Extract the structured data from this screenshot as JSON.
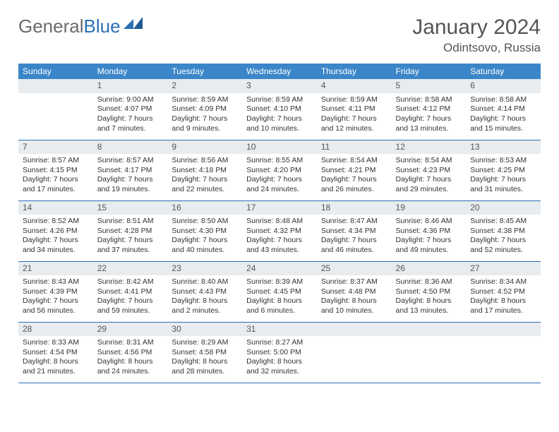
{
  "logo": {
    "text_gray": "General",
    "text_blue": "Blue"
  },
  "header": {
    "month_title": "January 2024",
    "location": "Odintsovo, Russia"
  },
  "colors": {
    "header_bg": "#3b86c8",
    "header_text": "#ffffff",
    "daynum_bg": "#e8ecef",
    "border": "#2c6fb5",
    "logo_gray": "#6b6b6b",
    "logo_blue": "#2c6fb5"
  },
  "columns": [
    "Sunday",
    "Monday",
    "Tuesday",
    "Wednesday",
    "Thursday",
    "Friday",
    "Saturday"
  ],
  "weeks": [
    [
      {
        "blank": true
      },
      {
        "n": "1",
        "sr": "Sunrise: 9:00 AM",
        "ss": "Sunset: 4:07 PM",
        "d1": "Daylight: 7 hours",
        "d2": "and 7 minutes."
      },
      {
        "n": "2",
        "sr": "Sunrise: 8:59 AM",
        "ss": "Sunset: 4:09 PM",
        "d1": "Daylight: 7 hours",
        "d2": "and 9 minutes."
      },
      {
        "n": "3",
        "sr": "Sunrise: 8:59 AM",
        "ss": "Sunset: 4:10 PM",
        "d1": "Daylight: 7 hours",
        "d2": "and 10 minutes."
      },
      {
        "n": "4",
        "sr": "Sunrise: 8:59 AM",
        "ss": "Sunset: 4:11 PM",
        "d1": "Daylight: 7 hours",
        "d2": "and 12 minutes."
      },
      {
        "n": "5",
        "sr": "Sunrise: 8:58 AM",
        "ss": "Sunset: 4:12 PM",
        "d1": "Daylight: 7 hours",
        "d2": "and 13 minutes."
      },
      {
        "n": "6",
        "sr": "Sunrise: 8:58 AM",
        "ss": "Sunset: 4:14 PM",
        "d1": "Daylight: 7 hours",
        "d2": "and 15 minutes."
      }
    ],
    [
      {
        "n": "7",
        "sr": "Sunrise: 8:57 AM",
        "ss": "Sunset: 4:15 PM",
        "d1": "Daylight: 7 hours",
        "d2": "and 17 minutes."
      },
      {
        "n": "8",
        "sr": "Sunrise: 8:57 AM",
        "ss": "Sunset: 4:17 PM",
        "d1": "Daylight: 7 hours",
        "d2": "and 19 minutes."
      },
      {
        "n": "9",
        "sr": "Sunrise: 8:56 AM",
        "ss": "Sunset: 4:18 PM",
        "d1": "Daylight: 7 hours",
        "d2": "and 22 minutes."
      },
      {
        "n": "10",
        "sr": "Sunrise: 8:55 AM",
        "ss": "Sunset: 4:20 PM",
        "d1": "Daylight: 7 hours",
        "d2": "and 24 minutes."
      },
      {
        "n": "11",
        "sr": "Sunrise: 8:54 AM",
        "ss": "Sunset: 4:21 PM",
        "d1": "Daylight: 7 hours",
        "d2": "and 26 minutes."
      },
      {
        "n": "12",
        "sr": "Sunrise: 8:54 AM",
        "ss": "Sunset: 4:23 PM",
        "d1": "Daylight: 7 hours",
        "d2": "and 29 minutes."
      },
      {
        "n": "13",
        "sr": "Sunrise: 8:53 AM",
        "ss": "Sunset: 4:25 PM",
        "d1": "Daylight: 7 hours",
        "d2": "and 31 minutes."
      }
    ],
    [
      {
        "n": "14",
        "sr": "Sunrise: 8:52 AM",
        "ss": "Sunset: 4:26 PM",
        "d1": "Daylight: 7 hours",
        "d2": "and 34 minutes."
      },
      {
        "n": "15",
        "sr": "Sunrise: 8:51 AM",
        "ss": "Sunset: 4:28 PM",
        "d1": "Daylight: 7 hours",
        "d2": "and 37 minutes."
      },
      {
        "n": "16",
        "sr": "Sunrise: 8:50 AM",
        "ss": "Sunset: 4:30 PM",
        "d1": "Daylight: 7 hours",
        "d2": "and 40 minutes."
      },
      {
        "n": "17",
        "sr": "Sunrise: 8:48 AM",
        "ss": "Sunset: 4:32 PM",
        "d1": "Daylight: 7 hours",
        "d2": "and 43 minutes."
      },
      {
        "n": "18",
        "sr": "Sunrise: 8:47 AM",
        "ss": "Sunset: 4:34 PM",
        "d1": "Daylight: 7 hours",
        "d2": "and 46 minutes."
      },
      {
        "n": "19",
        "sr": "Sunrise: 8:46 AM",
        "ss": "Sunset: 4:36 PM",
        "d1": "Daylight: 7 hours",
        "d2": "and 49 minutes."
      },
      {
        "n": "20",
        "sr": "Sunrise: 8:45 AM",
        "ss": "Sunset: 4:38 PM",
        "d1": "Daylight: 7 hours",
        "d2": "and 52 minutes."
      }
    ],
    [
      {
        "n": "21",
        "sr": "Sunrise: 8:43 AM",
        "ss": "Sunset: 4:39 PM",
        "d1": "Daylight: 7 hours",
        "d2": "and 56 minutes."
      },
      {
        "n": "22",
        "sr": "Sunrise: 8:42 AM",
        "ss": "Sunset: 4:41 PM",
        "d1": "Daylight: 7 hours",
        "d2": "and 59 minutes."
      },
      {
        "n": "23",
        "sr": "Sunrise: 8:40 AM",
        "ss": "Sunset: 4:43 PM",
        "d1": "Daylight: 8 hours",
        "d2": "and 2 minutes."
      },
      {
        "n": "24",
        "sr": "Sunrise: 8:39 AM",
        "ss": "Sunset: 4:45 PM",
        "d1": "Daylight: 8 hours",
        "d2": "and 6 minutes."
      },
      {
        "n": "25",
        "sr": "Sunrise: 8:37 AM",
        "ss": "Sunset: 4:48 PM",
        "d1": "Daylight: 8 hours",
        "d2": "and 10 minutes."
      },
      {
        "n": "26",
        "sr": "Sunrise: 8:36 AM",
        "ss": "Sunset: 4:50 PM",
        "d1": "Daylight: 8 hours",
        "d2": "and 13 minutes."
      },
      {
        "n": "27",
        "sr": "Sunrise: 8:34 AM",
        "ss": "Sunset: 4:52 PM",
        "d1": "Daylight: 8 hours",
        "d2": "and 17 minutes."
      }
    ],
    [
      {
        "n": "28",
        "sr": "Sunrise: 8:33 AM",
        "ss": "Sunset: 4:54 PM",
        "d1": "Daylight: 8 hours",
        "d2": "and 21 minutes."
      },
      {
        "n": "29",
        "sr": "Sunrise: 8:31 AM",
        "ss": "Sunset: 4:56 PM",
        "d1": "Daylight: 8 hours",
        "d2": "and 24 minutes."
      },
      {
        "n": "30",
        "sr": "Sunrise: 8:29 AM",
        "ss": "Sunset: 4:58 PM",
        "d1": "Daylight: 8 hours",
        "d2": "and 28 minutes."
      },
      {
        "n": "31",
        "sr": "Sunrise: 8:27 AM",
        "ss": "Sunset: 5:00 PM",
        "d1": "Daylight: 8 hours",
        "d2": "and 32 minutes."
      },
      {
        "blank": true
      },
      {
        "blank": true
      },
      {
        "blank": true
      }
    ]
  ]
}
